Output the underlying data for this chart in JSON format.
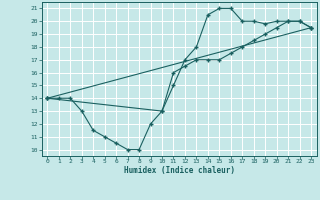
{
  "xlabel": "Humidex (Indice chaleur)",
  "xlim": [
    -0.5,
    23.5
  ],
  "ylim": [
    9.5,
    21.5
  ],
  "xticks": [
    0,
    1,
    2,
    3,
    4,
    5,
    6,
    7,
    8,
    9,
    10,
    11,
    12,
    13,
    14,
    15,
    16,
    17,
    18,
    19,
    20,
    21,
    22,
    23
  ],
  "yticks": [
    10,
    11,
    12,
    13,
    14,
    15,
    16,
    17,
    18,
    19,
    20,
    21
  ],
  "bg_color": "#c6e8e8",
  "line_color": "#1a6060",
  "grid_color": "#ffffff",
  "lines": [
    {
      "x": [
        0,
        1,
        2,
        3,
        4,
        5,
        6,
        7,
        8,
        9,
        10,
        11,
        12,
        13,
        14,
        15,
        16,
        17,
        18,
        19,
        20,
        21,
        22,
        23
      ],
      "y": [
        14,
        14,
        14,
        13,
        11.5,
        11,
        10.5,
        10,
        10,
        12,
        13,
        15,
        17,
        18,
        20.5,
        21,
        21,
        20,
        20,
        19.8,
        20,
        20,
        20,
        19.5
      ]
    },
    {
      "x": [
        0,
        23
      ],
      "y": [
        14,
        19.5
      ]
    },
    {
      "x": [
        0,
        10,
        11,
        12,
        13,
        14,
        15,
        16,
        17,
        18,
        19,
        20,
        21,
        22,
        23
      ],
      "y": [
        14,
        13,
        16,
        16.5,
        17,
        17,
        17,
        17.5,
        18,
        18.5,
        19,
        19.5,
        20,
        20,
        19.5
      ]
    }
  ]
}
